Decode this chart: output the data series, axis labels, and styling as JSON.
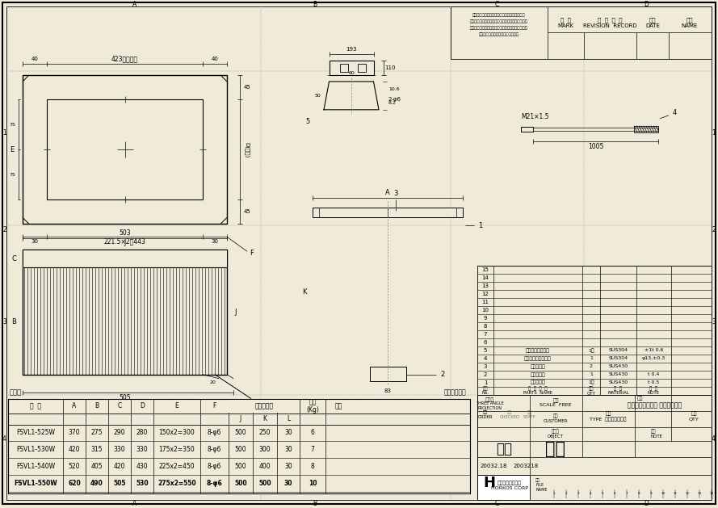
{
  "bg_color": "#f0ead8",
  "watermark_color": "#c8b87a",
  "parts_list": [
    {
      "no": "15",
      "name": "",
      "qty": "",
      "material": "",
      "note": ""
    },
    {
      "no": "14",
      "name": "",
      "qty": "",
      "material": "",
      "note": ""
    },
    {
      "no": "13",
      "name": "",
      "qty": "",
      "material": "",
      "note": ""
    },
    {
      "no": "12",
      "name": "",
      "qty": "",
      "material": "",
      "note": ""
    },
    {
      "no": "11",
      "name": "",
      "qty": "",
      "material": "",
      "note": ""
    },
    {
      "no": "10",
      "name": "",
      "qty": "",
      "material": "",
      "note": ""
    },
    {
      "no": "9",
      "name": "",
      "qty": "",
      "material": "",
      "note": ""
    },
    {
      "no": "8",
      "name": "",
      "qty": "",
      "material": "",
      "note": ""
    },
    {
      "no": "7",
      "name": "",
      "qty": "",
      "material": "",
      "note": ""
    },
    {
      "no": "6",
      "name": "",
      "qty": "",
      "material": "",
      "note": ""
    },
    {
      "no": "5",
      "name": "コレクターカップ",
      "qty": "1式",
      "material": "SUS304",
      "note": "±1t 0.6"
    },
    {
      "no": "4",
      "name": "フレキシブルパイプ",
      "qty": "1",
      "material": "SUS304",
      "note": "φ13,±0.3"
    },
    {
      "no": "3",
      "name": "フィルター",
      "qty": "2",
      "material": "SUS430",
      "note": ""
    },
    {
      "no": "2",
      "name": "オイルパン",
      "qty": "1",
      "material": "SUS430",
      "note": "t 0.4"
    },
    {
      "no": "1",
      "name": "チャンバー",
      "qty": "1式",
      "material": "SUS430",
      "note": "t 0.5"
    }
  ],
  "dim_table_rows": [
    [
      "FSVL1-525W",
      "370",
      "275",
      "290",
      "280",
      "150x2=300",
      "8-φ6",
      "500",
      "250",
      "30",
      "6",
      ""
    ],
    [
      "FSVL1-530W",
      "420",
      "315",
      "330",
      "330",
      "175x2=350",
      "8-φ6",
      "500",
      "300",
      "30",
      "7",
      ""
    ],
    [
      "FSVL1-540W",
      "520",
      "405",
      "420",
      "430",
      "225x2=450",
      "8-φ6",
      "500",
      "400",
      "30",
      "8",
      ""
    ],
    [
      "FSVL1-550W",
      "620",
      "490",
      "505",
      "530",
      "275x2=550",
      "8-φ6",
      "500",
      "500",
      "30",
      "10",
      ""
    ]
  ]
}
